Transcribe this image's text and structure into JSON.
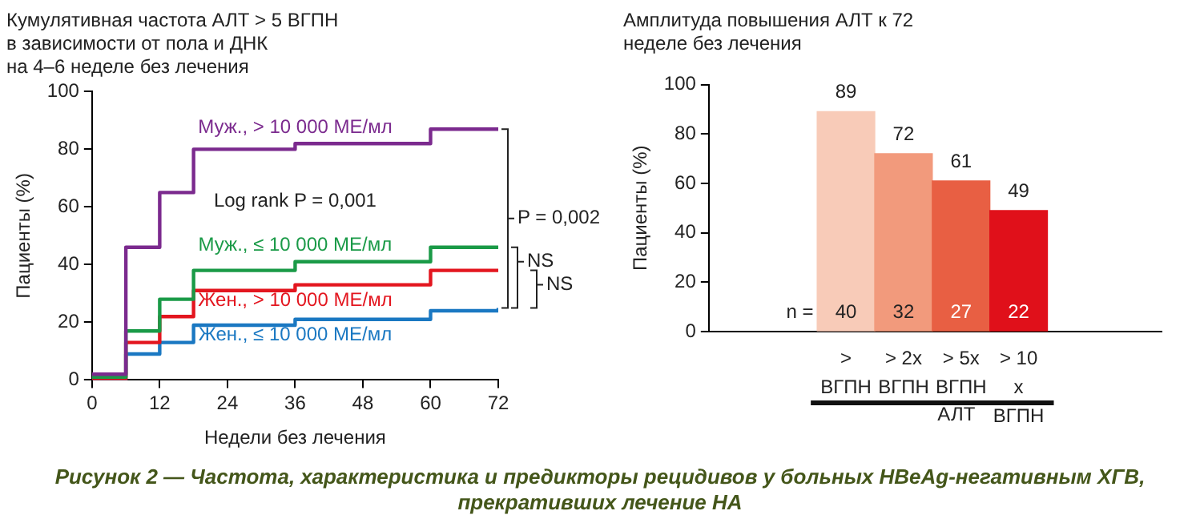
{
  "chart_data": [
    {
      "type": "step",
      "title": "Кумулятивная частота АЛТ > 5 ВГПН\nв зависимости от пола и ДНК\nна 4–6 неделе без лечения",
      "xlabel": "Недели без лечения",
      "ylabel": "Пациенты (%)",
      "x": [
        0,
        6,
        12,
        18,
        36,
        60,
        72
      ],
      "series": [
        {
          "name": "Муж., > 10 000 МЕ/мл",
          "color": "#7b2a8e",
          "values": [
            2,
            46,
            65,
            80,
            82,
            87,
            87
          ]
        },
        {
          "name": "Муж., ≤ 10 000 МЕ/мл",
          "color": "#1a9a47",
          "values": [
            1,
            17,
            28,
            38,
            41,
            46,
            46
          ]
        },
        {
          "name": "Жен., > 10 000 МЕ/мл",
          "color": "#e3161f",
          "values": [
            0,
            13,
            22,
            31,
            33,
            38,
            38
          ]
        },
        {
          "name": "Жен., ≤ 10 000 МЕ/мл",
          "color": "#1a78c2",
          "values": [
            0,
            9,
            13,
            19,
            21,
            24,
            25
          ]
        }
      ],
      "xlim": [
        0,
        72
      ],
      "xticks": [
        0,
        12,
        24,
        36,
        48,
        60,
        72
      ],
      "ylim": [
        0,
        100
      ],
      "yticks": [
        0,
        20,
        40,
        60,
        80,
        100
      ],
      "annotations": [
        "Log rank P = 0,001",
        "P = 0,002",
        "NS",
        "NS"
      ]
    },
    {
      "type": "bar",
      "title": "Амплитуда повышения АЛТ к 72\nнеделе без лечения",
      "ylabel": "Пациенты (%)",
      "categories": [
        ">\nВГПН",
        "> 2x\nВГПН",
        "> 5x\nВГПН",
        "> 10\nx\nВГПН"
      ],
      "values": [
        89,
        72,
        61,
        49
      ],
      "colors": [
        "#f8cbb8",
        "#f29a7c",
        "#e85f43",
        "#e0101a"
      ],
      "ylim": [
        0,
        100
      ],
      "yticks": [
        0,
        20,
        40,
        60,
        80,
        100
      ],
      "data_labels": true,
      "annotations": [
        "n =",
        "40",
        "32",
        "27",
        "22",
        "АЛТ",
        "Рисунок 2 — Частота, характеристика и предикторы рецидивов у больных HBeAg-негативным ХГВ, прекративших лечение НА"
      ]
    }
  ]
}
